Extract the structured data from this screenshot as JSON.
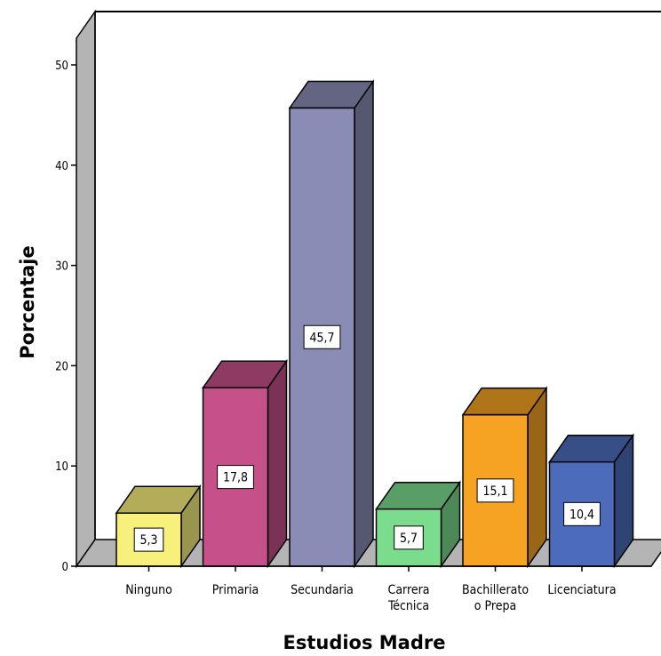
{
  "chart_data": {
    "type": "bar",
    "categories": [
      "Ninguno",
      "Primaria",
      "Secundaria",
      "Carrera Técnica",
      "Bachillerato o Prepa",
      "Licenciatura"
    ],
    "category_lines": [
      [
        "Ninguno"
      ],
      [
        "Primaria"
      ],
      [
        "Secundaria"
      ],
      [
        "Carrera",
        "Técnica"
      ],
      [
        "Bachillerato",
        "o Prepa"
      ],
      [
        "Licenciatura"
      ]
    ],
    "values": [
      5.3,
      17.8,
      45.7,
      5.7,
      15.1,
      10.4
    ],
    "value_labels": [
      "5,3",
      "17,8",
      "45,7",
      "5,7",
      "15,1",
      "10,4"
    ],
    "colors": [
      "#f8f07d",
      "#c5508a",
      "#8a8cb6",
      "#7cdc8e",
      "#f6a323",
      "#4c6cbb"
    ],
    "xlabel": "Estudios Madre",
    "ylabel": "Porcentaje",
    "ylim": [
      0,
      50
    ],
    "yticks": [
      0,
      10,
      20,
      30,
      40,
      50
    ],
    "three_d": true,
    "grid": false,
    "legend": "none"
  }
}
